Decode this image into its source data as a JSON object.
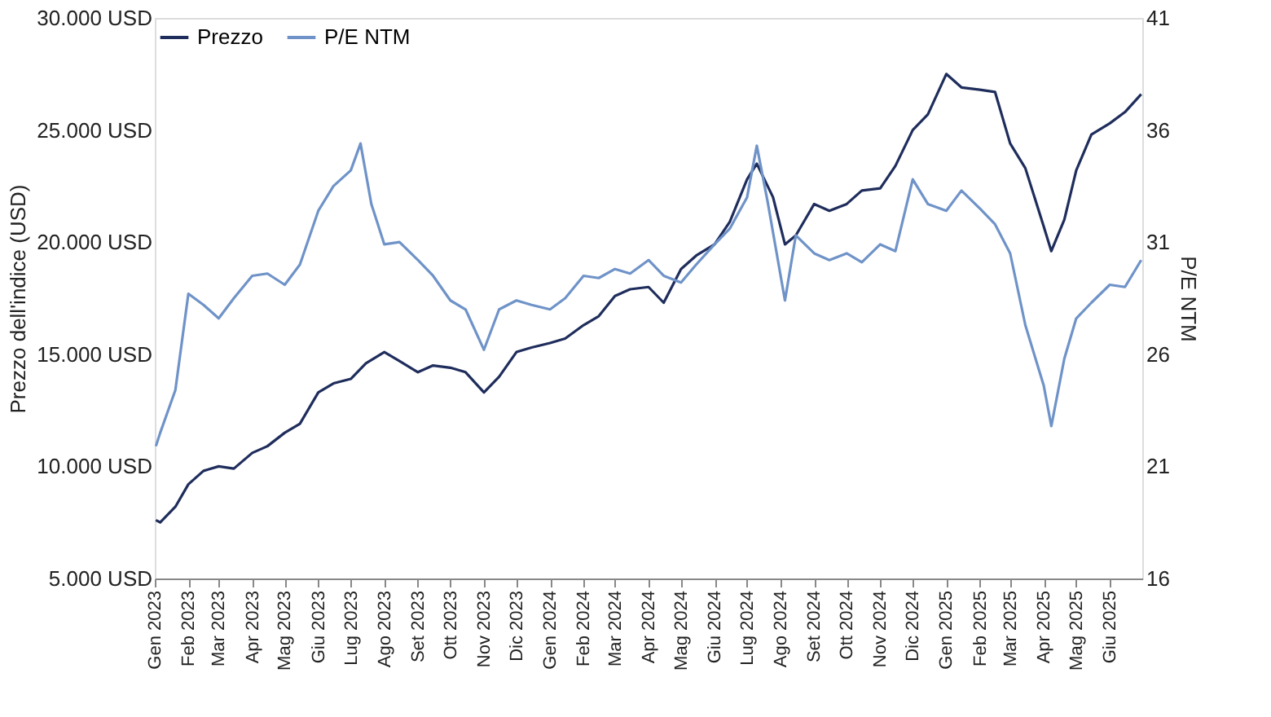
{
  "chart_data": {
    "type": "line",
    "ylabel": "Prezzo dell'indice (USD)",
    "y2label": "P/E NTM",
    "legend": "top left",
    "grid": false,
    "line_style": "solid",
    "marker": "none",
    "xlim": [
      "2023-01-01",
      "2025-07-01"
    ],
    "xticks": [
      {
        "value": "2023-01-01",
        "label": "Gen 2023"
      },
      {
        "value": "2023-02-01",
        "label": "Feb 2023"
      },
      {
        "value": "2023-03-01",
        "label": "Mar 2023"
      },
      {
        "value": "2023-04-01",
        "label": "Apr 2023"
      },
      {
        "value": "2023-05-01",
        "label": "Mag 2023"
      },
      {
        "value": "2023-06-01",
        "label": "Giu 2023"
      },
      {
        "value": "2023-07-01",
        "label": "Lug 2023"
      },
      {
        "value": "2023-08-01",
        "label": "Ago 2023"
      },
      {
        "value": "2023-09-01",
        "label": "Set 2023"
      },
      {
        "value": "2023-10-01",
        "label": "Ott 2023"
      },
      {
        "value": "2023-11-01",
        "label": "Nov 2023"
      },
      {
        "value": "2023-12-01",
        "label": "Dic 2023"
      },
      {
        "value": "2024-01-01",
        "label": "Gen 2024"
      },
      {
        "value": "2024-02-01",
        "label": "Feb 2024"
      },
      {
        "value": "2024-03-01",
        "label": "Mar 2024"
      },
      {
        "value": "2024-04-01",
        "label": "Apr 2024"
      },
      {
        "value": "2024-05-01",
        "label": "Mag 2024"
      },
      {
        "value": "2024-06-01",
        "label": "Giu 2024"
      },
      {
        "value": "2024-07-01",
        "label": "Lug 2024"
      },
      {
        "value": "2024-08-01",
        "label": "Ago 2024"
      },
      {
        "value": "2024-09-01",
        "label": "Set 2024"
      },
      {
        "value": "2024-10-01",
        "label": "Ott 2024"
      },
      {
        "value": "2024-11-01",
        "label": "Nov 2024"
      },
      {
        "value": "2024-12-01",
        "label": "Dic 2024"
      },
      {
        "value": "2025-01-01",
        "label": "Gen 2025"
      },
      {
        "value": "2025-02-01",
        "label": "Feb 2025"
      },
      {
        "value": "2025-03-01",
        "label": "Mar 2025"
      },
      {
        "value": "2025-04-01",
        "label": "Apr 2025"
      },
      {
        "value": "2025-05-01",
        "label": "Mag 2025"
      },
      {
        "value": "2025-06-01",
        "label": "Giu 2025"
      }
    ],
    "ylim": [
      5000,
      30000
    ],
    "yticks": [
      {
        "value": 5000,
        "label": "5.000 USD"
      },
      {
        "value": 10000,
        "label": "10.000 USD"
      },
      {
        "value": 15000,
        "label": "15.000 USD"
      },
      {
        "value": 20000,
        "label": "20.000 USD"
      },
      {
        "value": 25000,
        "label": "25.000 USD"
      },
      {
        "value": 30000,
        "label": "30.000 USD"
      }
    ],
    "y2lim": [
      16,
      41
    ],
    "y2ticks": [
      16,
      21,
      26,
      31,
      36,
      41
    ],
    "series": [
      {
        "name": "Prezzo",
        "color": "#1f2d5c",
        "x": [
          "2023-01-02",
          "2023-01-06",
          "2023-01-20",
          "2023-02-01",
          "2023-02-15",
          "2023-03-01",
          "2023-03-15",
          "2023-04-01",
          "2023-04-15",
          "2023-05-01",
          "2023-05-15",
          "2023-06-01",
          "2023-06-15",
          "2023-07-01",
          "2023-07-15",
          "2023-08-01",
          "2023-08-15",
          "2023-09-01",
          "2023-09-15",
          "2023-10-01",
          "2023-10-15",
          "2023-11-01",
          "2023-11-15",
          "2023-12-01",
          "2023-12-15",
          "2024-01-01",
          "2024-01-15",
          "2024-02-01",
          "2024-02-15",
          "2024-03-01",
          "2024-03-15",
          "2024-04-01",
          "2024-04-15",
          "2024-05-01",
          "2024-05-15",
          "2024-06-01",
          "2024-06-15",
          "2024-07-01",
          "2024-07-10",
          "2024-07-25",
          "2024-08-05",
          "2024-08-15",
          "2024-09-01",
          "2024-09-15",
          "2024-10-01",
          "2024-10-15",
          "2024-11-01",
          "2024-11-15",
          "2024-12-01",
          "2024-12-15",
          "2025-01-01",
          "2025-01-15",
          "2025-02-01",
          "2025-02-15",
          "2025-03-01",
          "2025-03-15",
          "2025-04-01",
          "2025-04-08",
          "2025-04-20",
          "2025-05-01",
          "2025-05-15",
          "2025-06-01",
          "2025-06-15",
          "2025-06-30"
        ],
        "values": [
          7600,
          7500,
          8200,
          9200,
          9800,
          10000,
          9900,
          10600,
          10900,
          11500,
          11900,
          13300,
          13700,
          13900,
          14600,
          15100,
          14700,
          14200,
          14500,
          14400,
          14200,
          13300,
          14000,
          15100,
          15300,
          15500,
          15700,
          16300,
          16700,
          17600,
          17900,
          18000,
          17300,
          18800,
          19400,
          19900,
          20900,
          22800,
          23500,
          22000,
          19900,
          20300,
          21700,
          21400,
          21700,
          22300,
          22400,
          23400,
          25000,
          25700,
          27500,
          26900,
          26800,
          26700,
          24400,
          23300,
          20700,
          19600,
          21000,
          23200,
          24800,
          25300,
          25800,
          26600
        ]
      },
      {
        "name": "P/E NTM",
        "color": "#6f93c8",
        "axis": "y2",
        "x": [
          "2023-01-02",
          "2023-01-06",
          "2023-01-20",
          "2023-02-01",
          "2023-02-15",
          "2023-03-01",
          "2023-03-15",
          "2023-04-01",
          "2023-04-15",
          "2023-05-01",
          "2023-05-15",
          "2023-06-01",
          "2023-06-15",
          "2023-07-01",
          "2023-07-10",
          "2023-07-20",
          "2023-08-01",
          "2023-08-15",
          "2023-09-01",
          "2023-09-15",
          "2023-10-01",
          "2023-10-15",
          "2023-11-01",
          "2023-11-15",
          "2023-12-01",
          "2023-12-15",
          "2024-01-01",
          "2024-01-15",
          "2024-02-01",
          "2024-02-15",
          "2024-03-01",
          "2024-03-15",
          "2024-04-01",
          "2024-04-15",
          "2024-05-01",
          "2024-05-15",
          "2024-06-01",
          "2024-06-15",
          "2024-07-01",
          "2024-07-10",
          "2024-07-20",
          "2024-08-05",
          "2024-08-15",
          "2024-09-01",
          "2024-09-15",
          "2024-10-01",
          "2024-10-15",
          "2024-11-01",
          "2024-11-15",
          "2024-12-01",
          "2024-12-15",
          "2025-01-01",
          "2025-01-15",
          "2025-02-01",
          "2025-02-15",
          "2025-03-01",
          "2025-03-15",
          "2025-04-01",
          "2025-04-08",
          "2025-04-20",
          "2025-05-01",
          "2025-05-15",
          "2025-06-01",
          "2025-06-15",
          "2025-06-30"
        ],
        "values": [
          21.9,
          22.5,
          24.4,
          28.7,
          28.2,
          27.6,
          28.5,
          29.5,
          29.6,
          29.1,
          30.0,
          32.4,
          33.5,
          34.2,
          35.4,
          32.7,
          30.9,
          31.0,
          30.2,
          29.5,
          28.4,
          28.0,
          26.2,
          28.0,
          28.4,
          28.2,
          28.0,
          28.5,
          29.5,
          29.4,
          29.8,
          29.6,
          30.2,
          29.5,
          29.2,
          30.0,
          30.9,
          31.6,
          33.0,
          35.3,
          32.8,
          28.4,
          31.3,
          30.5,
          30.2,
          30.5,
          30.1,
          30.9,
          30.6,
          33.8,
          32.7,
          32.4,
          33.3,
          32.5,
          31.8,
          30.5,
          27.3,
          24.6,
          22.8,
          25.8,
          27.6,
          28.3,
          29.1,
          29.0,
          30.2
        ]
      }
    ]
  }
}
